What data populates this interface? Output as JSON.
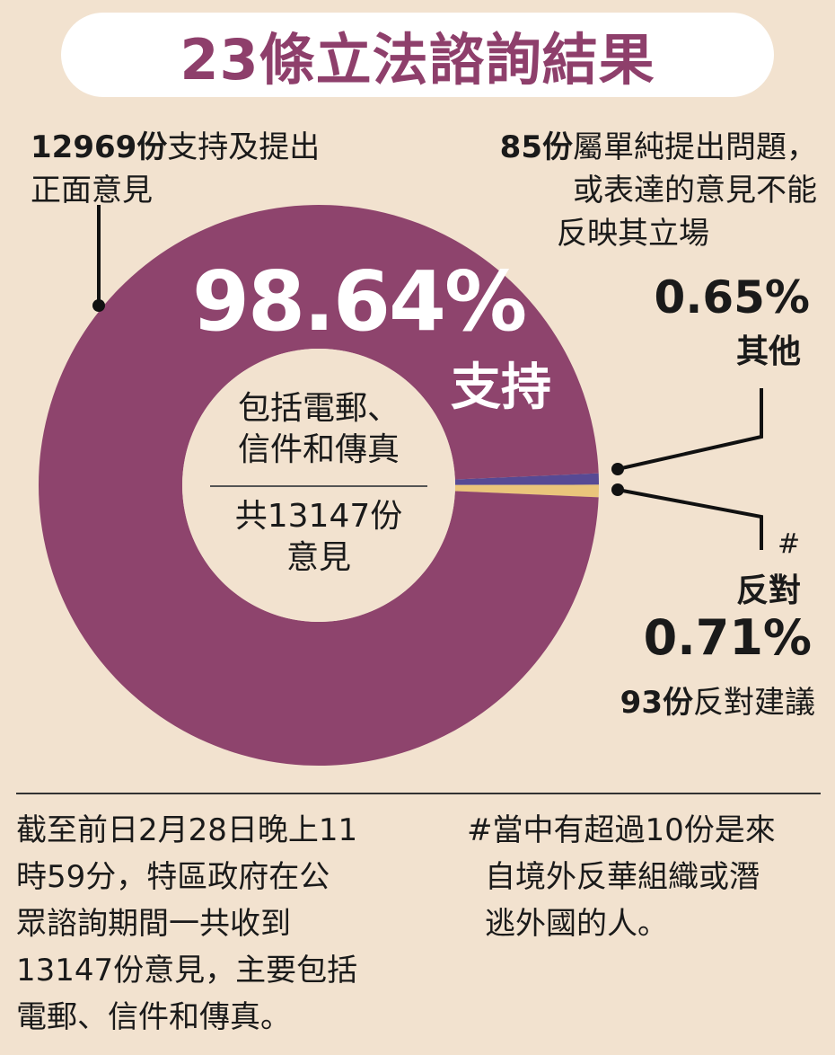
{
  "title": "23條立法諮詢結果",
  "colors": {
    "support": "#8e446d",
    "other": "#574a94",
    "oppose": "#eac57b",
    "title": "#8e3f6b",
    "background": "#f2e2cf"
  },
  "chart_data": {
    "type": "pie",
    "title": "23條立法諮詢結果",
    "total": 13147,
    "center_label": [
      "包括電郵、",
      "信件和傳真",
      "共13147份",
      "意見"
    ],
    "slices": [
      {
        "name": "支持",
        "percent": 98.64,
        "count": 12969,
        "color": "#8e446d"
      },
      {
        "name": "其他",
        "percent": 0.65,
        "count": 85,
        "color": "#574a94"
      },
      {
        "name": "反對",
        "percent": 0.71,
        "count": 93,
        "color": "#eac57b"
      }
    ]
  },
  "labels": {
    "support_count": "12969份",
    "support_text_1": "支持及提出",
    "support_text_2": "正面意見",
    "support_pct": "98.64%",
    "support_word": "支持",
    "question_count": "85份",
    "question_text_1": "屬單純提出問題，",
    "question_text_2": "或表達的意見不能",
    "question_text_3": "反映其立場",
    "other_pct": "0.65%",
    "other_word": "其他",
    "hash": "#",
    "oppose_word": "反對",
    "oppose_pct": "0.71%",
    "oppose_count": "93份",
    "oppose_text": "反對建議",
    "center_1": "包括電郵、",
    "center_2": "信件和傳真",
    "center_3": "共13147份",
    "center_4": "意見"
  },
  "notes": {
    "left": [
      "截至前日2月28日晚上11",
      "時59分，特區政府在公",
      "眾諮詢期間一共收到",
      "13147份意見，主要包括",
      "電郵、信件和傳真。"
    ],
    "right": [
      "#當中有超過10份是來",
      "自境外反華組織或潛",
      "逃外國的人。"
    ]
  }
}
